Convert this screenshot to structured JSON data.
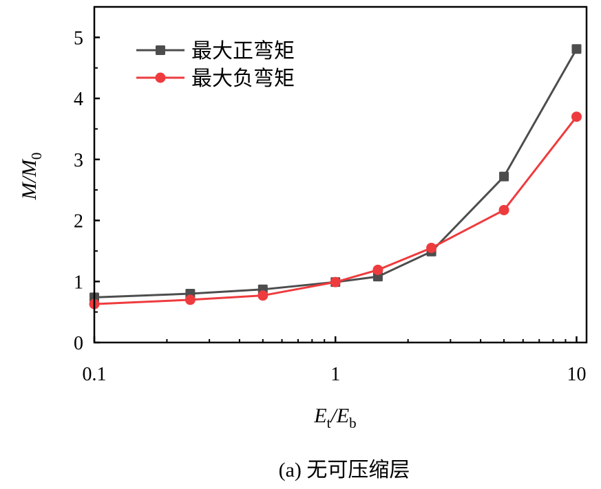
{
  "chart_data": {
    "type": "line",
    "x_scale": "log",
    "xlim": [
      0.1,
      11
    ],
    "ylim": [
      0,
      5.5
    ],
    "x_ticks": [
      "0.1",
      "1",
      "10"
    ],
    "y_ticks": [
      "0",
      "1",
      "2",
      "3",
      "4",
      "5"
    ],
    "xlabel": {
      "main": "E",
      "sub1": "t",
      "slash": "/",
      "main2": "E",
      "sub2": "b"
    },
    "ylabel": {
      "main": "M/M",
      "sub": "0"
    },
    "caption": "(a) 无可压缩层",
    "legend_position": "top-left",
    "grid": false,
    "x": [
      0.1,
      0.25,
      0.5,
      1,
      1.5,
      2.5,
      5,
      10
    ],
    "series": [
      {
        "name": "最大正弯矩",
        "color": "#4d4d4d",
        "marker": "square",
        "values": [
          0.74,
          0.8,
          0.87,
          0.99,
          1.08,
          1.49,
          2.72,
          4.81
        ]
      },
      {
        "name": "最大负弯矩",
        "color": "#ee3b3e",
        "marker": "circle",
        "values": [
          0.63,
          0.7,
          0.77,
          0.99,
          1.19,
          1.55,
          2.17,
          3.7
        ]
      }
    ]
  }
}
